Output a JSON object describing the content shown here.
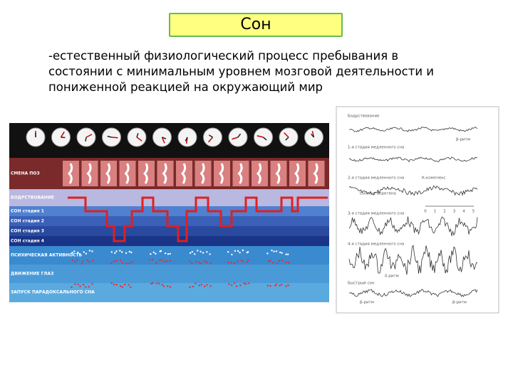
{
  "title": "Сон",
  "definition": "-естественный физиологический процесс пребывания в состоянии с минимальным уровнем мозговой деятельности и пониженной реакцией на окружающий мир",
  "figure_left": {
    "labels": [
      "СМЕНА ПОЗ",
      "БОДРСТВОВАНИЕ",
      "СОН стадия 1",
      "СОН стадия 2",
      "СОН стадия 3",
      "СОН стадия 4",
      "ПСИХИЧЕСКАЯ АКТИВНОСТЬ",
      "ДВИЖЕНИЕ ГЛАЗ",
      "ЗАПУСК ПАРАДОКСАЛЬНОГО СНА"
    ]
  },
  "figure_right": {
    "labels": [
      "Бодрствование",
      "β-ритм",
      "1-я стадия медленного сна",
      "2-я стадия медленного сна",
      "К-комплекс",
      "Сонные веретена",
      "3-я стадия медленного сна",
      "4-я стадия медленного сна",
      "δ-ритм",
      "Быстрый сон",
      "β-ритм",
      "β-ритм"
    ],
    "scale": [
      0,
      1,
      2,
      3,
      4,
      5
    ]
  }
}
